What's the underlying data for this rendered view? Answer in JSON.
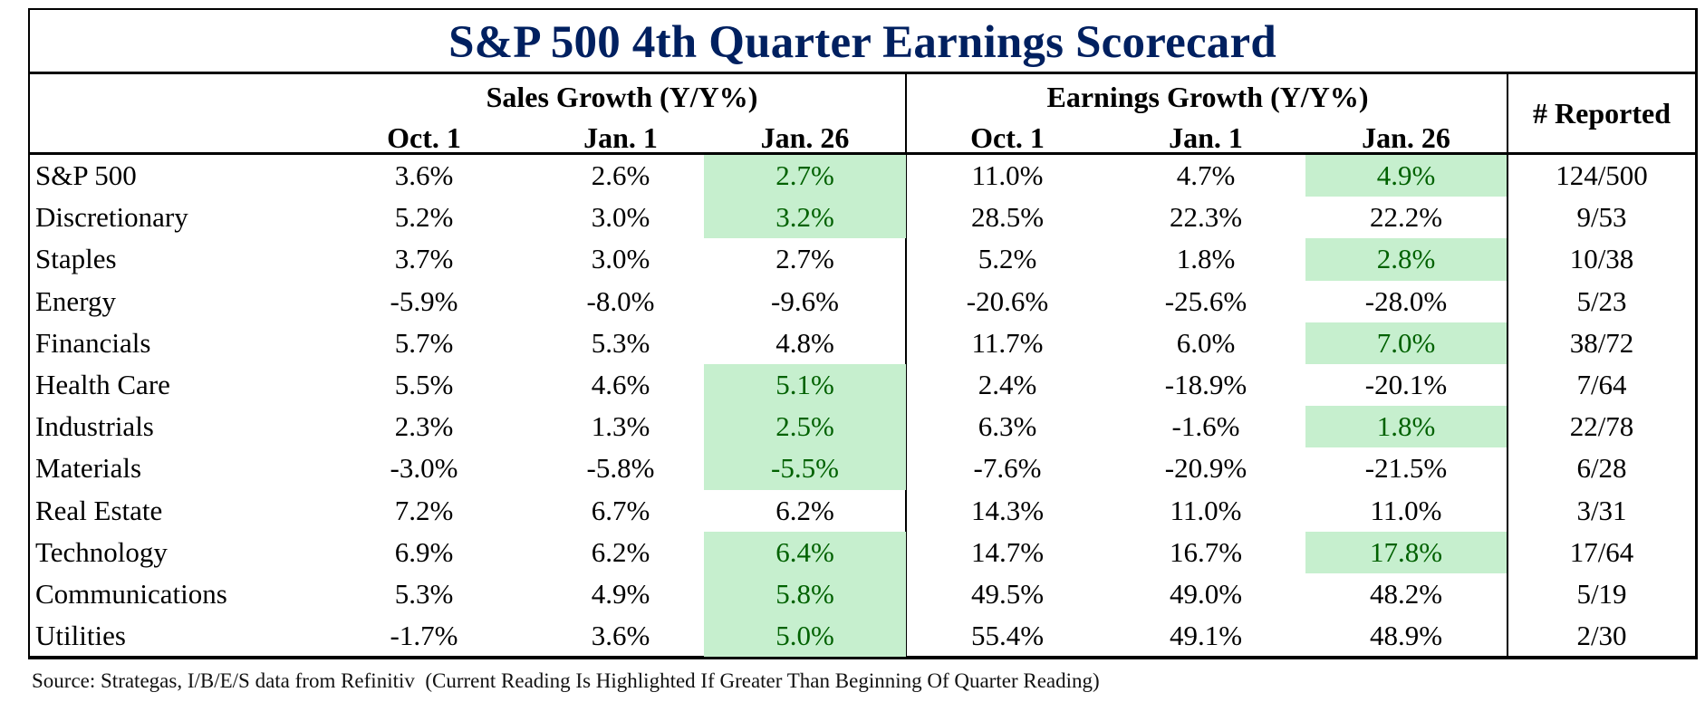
{
  "title": "S&P 500 4th Quarter Earnings Scorecard",
  "colors": {
    "title": "#002060",
    "highlight_bg": "#c6efce",
    "highlight_text": "#006100",
    "border": "#000000"
  },
  "header": {
    "sales_group": "Sales Growth (Y/Y%)",
    "earnings_group": "Earnings Growth (Y/Y%)",
    "reported": "# Reported",
    "sales_cols": [
      "Oct. 1",
      "Jan. 1",
      "Jan. 26"
    ],
    "earnings_cols": [
      "Oct. 1",
      "Jan. 1",
      "Jan. 26"
    ]
  },
  "rows": [
    {
      "sector": "S&P 500",
      "sales": [
        "3.6%",
        "2.6%",
        "2.7%"
      ],
      "sales_hl": true,
      "earnings": [
        "11.0%",
        "4.7%",
        "4.9%"
      ],
      "earnings_hl": true,
      "reported": "124/500"
    },
    {
      "sector": "Discretionary",
      "sales": [
        "5.2%",
        "3.0%",
        "3.2%"
      ],
      "sales_hl": true,
      "earnings": [
        "28.5%",
        "22.3%",
        "22.2%"
      ],
      "earnings_hl": false,
      "reported": "9/53"
    },
    {
      "sector": "Staples",
      "sales": [
        "3.7%",
        "3.0%",
        "2.7%"
      ],
      "sales_hl": false,
      "earnings": [
        "5.2%",
        "1.8%",
        "2.8%"
      ],
      "earnings_hl": true,
      "reported": "10/38"
    },
    {
      "sector": "Energy",
      "sales": [
        "-5.9%",
        "-8.0%",
        "-9.6%"
      ],
      "sales_hl": false,
      "earnings": [
        "-20.6%",
        "-25.6%",
        "-28.0%"
      ],
      "earnings_hl": false,
      "reported": "5/23"
    },
    {
      "sector": "Financials",
      "sales": [
        "5.7%",
        "5.3%",
        "4.8%"
      ],
      "sales_hl": false,
      "earnings": [
        "11.7%",
        "6.0%",
        "7.0%"
      ],
      "earnings_hl": true,
      "reported": "38/72"
    },
    {
      "sector": "Health Care",
      "sales": [
        "5.5%",
        "4.6%",
        "5.1%"
      ],
      "sales_hl": true,
      "earnings": [
        "2.4%",
        "-18.9%",
        "-20.1%"
      ],
      "earnings_hl": false,
      "reported": "7/64"
    },
    {
      "sector": "Industrials",
      "sales": [
        "2.3%",
        "1.3%",
        "2.5%"
      ],
      "sales_hl": true,
      "earnings": [
        "6.3%",
        "-1.6%",
        "1.8%"
      ],
      "earnings_hl": true,
      "reported": "22/78"
    },
    {
      "sector": "Materials",
      "sales": [
        "-3.0%",
        "-5.8%",
        "-5.5%"
      ],
      "sales_hl": true,
      "earnings": [
        "-7.6%",
        "-20.9%",
        "-21.5%"
      ],
      "earnings_hl": false,
      "reported": "6/28"
    },
    {
      "sector": "Real Estate",
      "sales": [
        "7.2%",
        "6.7%",
        "6.2%"
      ],
      "sales_hl": false,
      "earnings": [
        "14.3%",
        "11.0%",
        "11.0%"
      ],
      "earnings_hl": false,
      "reported": "3/31"
    },
    {
      "sector": "Technology",
      "sales": [
        "6.9%",
        "6.2%",
        "6.4%"
      ],
      "sales_hl": true,
      "earnings": [
        "14.7%",
        "16.7%",
        "17.8%"
      ],
      "earnings_hl": true,
      "reported": "17/64"
    },
    {
      "sector": "Communications",
      "sales": [
        "5.3%",
        "4.9%",
        "5.8%"
      ],
      "sales_hl": true,
      "earnings": [
        "49.5%",
        "49.0%",
        "48.2%"
      ],
      "earnings_hl": false,
      "reported": "5/19"
    },
    {
      "sector": "Utilities",
      "sales": [
        "-1.7%",
        "3.6%",
        "5.0%"
      ],
      "sales_hl": true,
      "earnings": [
        "55.4%",
        "49.1%",
        "48.9%"
      ],
      "earnings_hl": false,
      "reported": "2/30"
    }
  ],
  "source": "Source: Strategas, I/B/E/S data from Refinitiv  (Current Reading Is Highlighted If Greater Than Beginning Of Quarter Reading)"
}
